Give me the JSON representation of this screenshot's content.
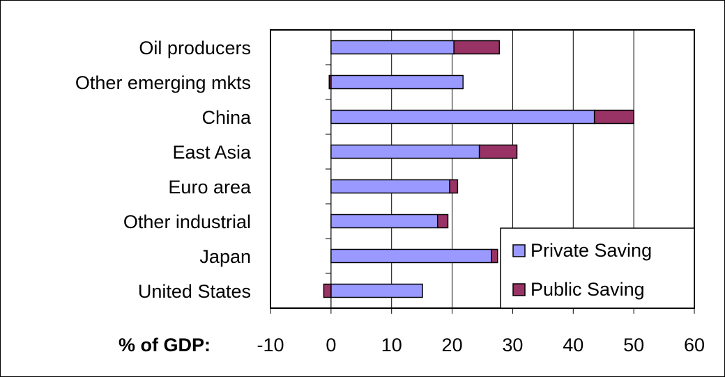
{
  "chart_data": {
    "type": "bar",
    "orientation": "horizontal",
    "stacked": true,
    "categories": [
      "Oil producers",
      "Other emerging mkts",
      "China",
      "East Asia",
      "Euro area",
      "Other industrial",
      "Japan",
      "United States"
    ],
    "series": [
      {
        "name": "Private Saving",
        "color": "#9999FF",
        "values": [
          20.3,
          21.8,
          43.5,
          24.5,
          19.6,
          17.6,
          26.5,
          15.1
        ]
      },
      {
        "name": "Public Saving",
        "color": "#993366",
        "values": [
          7.5,
          -0.3,
          6.5,
          6.2,
          1.3,
          1.7,
          1.0,
          -1.2
        ]
      }
    ],
    "xlim": [
      -10,
      60
    ],
    "xticks": [
      -10,
      0,
      10,
      20,
      30,
      40,
      50,
      60
    ],
    "xticklabels": [
      "-10",
      "0",
      "10",
      "20",
      "30",
      "40",
      "50",
      "60"
    ],
    "xlabel": "% of GDP:",
    "grid": "vertical",
    "legend_position": "bottom-right"
  }
}
